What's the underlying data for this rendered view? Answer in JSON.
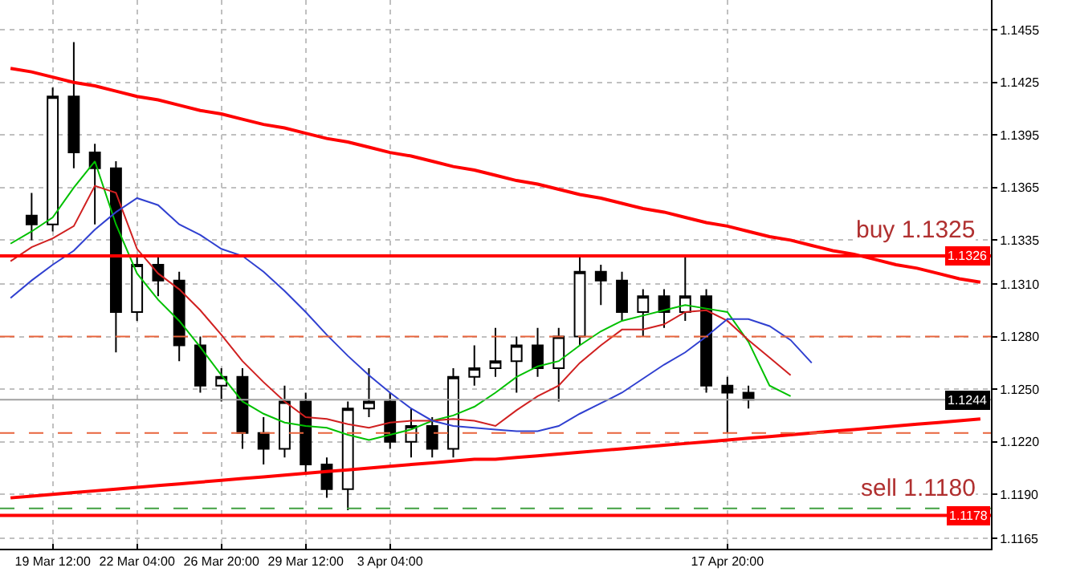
{
  "chart_data": {
    "type": "candlestick",
    "color": "#000000",
    "categories": [
      null,
      null,
      "19 Mar 12:00",
      null,
      null,
      null,
      "22 Mar 04:00",
      null,
      null,
      null,
      "26 Mar 20:00",
      null,
      null,
      null,
      "29 Mar 12:00",
      null,
      null,
      null,
      "3 Apr 04:00",
      null,
      null,
      null,
      null,
      null,
      null,
      null,
      null,
      null,
      null,
      null,
      null,
      null,
      null,
      null,
      "17 Apr 20:00",
      null,
      null,
      null,
      null,
      null,
      null,
      null,
      null,
      null,
      null,
      null,
      null
    ],
    "ohlc": [
      null,
      [
        1.1349,
        1.1362,
        1.1335,
        1.1344
      ],
      [
        1.1344,
        1.1422,
        1.134,
        1.1417
      ],
      [
        1.1417,
        1.1448,
        1.1376,
        1.1385
      ],
      [
        1.1385,
        1.139,
        1.1344,
        1.1376
      ],
      [
        1.1376,
        1.138,
        1.1271,
        1.1294
      ],
      [
        1.1294,
        1.1326,
        1.1289,
        1.1321
      ],
      [
        1.1321,
        1.1326,
        1.1303,
        1.1312
      ],
      [
        1.1312,
        1.1317,
        1.1266,
        1.1275
      ],
      [
        1.1275,
        1.128,
        1.1248,
        1.1252
      ],
      [
        1.1252,
        1.1262,
        1.1243,
        1.1257
      ],
      [
        1.1257,
        1.1262,
        1.1216,
        1.1225
      ],
      [
        1.1225,
        1.1234,
        1.1207,
        1.1216
      ],
      [
        1.1216,
        1.1252,
        1.1211,
        1.1243
      ],
      [
        1.1243,
        1.1248,
        1.1202,
        1.1207
      ],
      [
        1.1207,
        1.1211,
        1.1188,
        1.1193
      ],
      [
        1.1193,
        1.1243,
        1.1181,
        1.1239
      ],
      [
        1.1239,
        1.1262,
        1.1234,
        1.1243
      ],
      [
        1.1243,
        1.1248,
        1.1216,
        1.122
      ],
      [
        1.122,
        1.1239,
        1.1211,
        1.1229
      ],
      [
        1.1229,
        1.1234,
        1.1211,
        1.1216
      ],
      [
        1.1216,
        1.1262,
        1.1211,
        1.1257
      ],
      [
        1.1257,
        1.1275,
        1.1252,
        1.1262
      ],
      [
        1.1262,
        1.1285,
        1.1257,
        1.1266
      ],
      [
        1.1266,
        1.128,
        1.1248,
        1.1275
      ],
      [
        1.1275,
        1.1285,
        1.1257,
        1.1262
      ],
      [
        1.1262,
        1.1285,
        1.1243,
        1.128
      ],
      [
        1.128,
        1.1326,
        1.1275,
        1.1317
      ],
      [
        1.1317,
        1.1321,
        1.1298,
        1.1312
      ],
      [
        1.1312,
        1.1317,
        1.1289,
        1.1294
      ],
      [
        1.1294,
        1.1307,
        1.128,
        1.1303
      ],
      [
        1.1303,
        1.1307,
        1.1285,
        1.1294
      ],
      [
        1.1294,
        1.1326,
        1.1289,
        1.1303
      ],
      [
        1.1303,
        1.1307,
        1.1248,
        1.1252
      ],
      [
        1.1252,
        1.1257,
        1.1225,
        1.1248
      ],
      [
        1.1248,
        1.1252,
        1.1239,
        1.1244
      ],
      null,
      null,
      null,
      null,
      null,
      null,
      null,
      null,
      null,
      null,
      null
    ],
    "series": [
      {
        "type": "line",
        "color": "#00c000",
        "values": [
          1.1333,
          1.134,
          1.1348,
          1.1365,
          1.138,
          1.1344,
          1.1316,
          1.1301,
          1.1289,
          1.1274,
          1.1258,
          1.1243,
          1.1236,
          1.1231,
          1.1229,
          1.1228,
          1.1224,
          1.1221,
          1.1224,
          1.1227,
          1.1232,
          1.1235,
          1.124,
          1.1248,
          1.1257,
          1.1263,
          1.1266,
          1.1275,
          1.1283,
          1.1289,
          1.1292,
          1.1295,
          1.1298,
          1.1296,
          1.1294,
          1.1277,
          1.1252,
          1.1246,
          null,
          null,
          null,
          null,
          null,
          null,
          null,
          null,
          null
        ]
      },
      {
        "type": "line",
        "color": "#d02020",
        "values": [
          1.1323,
          1.1331,
          1.1336,
          1.1343,
          1.1366,
          1.1362,
          1.133,
          1.1316,
          1.1307,
          1.1295,
          1.1281,
          1.1266,
          1.1254,
          1.1243,
          1.1234,
          1.1233,
          1.123,
          1.1228,
          1.1231,
          1.1232,
          1.1232,
          1.1233,
          1.1232,
          1.1229,
          1.1238,
          1.1246,
          1.1252,
          1.1265,
          1.1275,
          1.1284,
          1.1284,
          1.1287,
          1.1294,
          1.1295,
          1.1289,
          1.1278,
          1.1268,
          1.1258,
          null,
          null,
          null,
          null,
          null,
          null,
          null,
          null,
          null
        ]
      },
      {
        "type": "line",
        "color": "#3040d0",
        "values": [
          1.1302,
          1.1312,
          1.1321,
          1.1329,
          1.1341,
          1.1351,
          1.1359,
          1.1355,
          1.1344,
          1.1338,
          1.133,
          1.1326,
          1.1317,
          1.1306,
          1.1294,
          1.1281,
          1.1269,
          1.1258,
          1.1248,
          1.1239,
          1.1232,
          1.1229,
          1.1228,
          1.1227,
          1.1226,
          1.1226,
          1.1229,
          1.1236,
          1.1242,
          1.1248,
          1.1256,
          1.1264,
          1.1271,
          1.128,
          1.129,
          1.129,
          1.1286,
          1.1278,
          1.1265,
          null,
          null,
          null,
          null,
          null,
          null,
          null,
          null
        ]
      },
      {
        "type": "line",
        "color": "#ff0000",
        "values": [
          1.1433,
          1.1431,
          1.1428,
          1.1425,
          1.1423,
          1.142,
          1.1417,
          1.1415,
          1.1412,
          1.1409,
          1.1407,
          1.1404,
          1.1401,
          1.1399,
          1.1396,
          1.1393,
          1.1391,
          1.1388,
          1.1385,
          1.1383,
          1.138,
          1.1377,
          1.1375,
          1.1372,
          1.1369,
          1.1367,
          1.1364,
          1.1361,
          1.1359,
          1.1356,
          1.1353,
          1.1351,
          1.1348,
          1.1345,
          1.1343,
          1.134,
          1.1337,
          1.1335,
          1.1332,
          1.1329,
          1.1327,
          1.1324,
          1.1321,
          1.1319,
          1.1316,
          1.1313,
          1.1311
        ]
      },
      {
        "type": "line",
        "color": "#ff0000",
        "values": [
          1.1188,
          1.1189,
          1.119,
          1.1191,
          1.1192,
          1.1193,
          1.1194,
          1.1195,
          1.1196,
          1.1197,
          1.1198,
          1.1199,
          1.12,
          1.1201,
          1.1202,
          1.1203,
          1.1204,
          1.1205,
          1.1206,
          1.1207,
          1.1208,
          1.1209,
          1.121,
          1.121,
          1.1211,
          1.1212,
          1.1213,
          1.1214,
          1.1215,
          1.1216,
          1.1217,
          1.1218,
          1.1219,
          1.122,
          1.1221,
          1.1222,
          1.1223,
          1.1224,
          1.1225,
          1.1226,
          1.1227,
          1.1228,
          1.1229,
          1.123,
          1.1231,
          1.1232,
          1.1233
        ]
      }
    ],
    "ylim": [
      1.1159,
      1.1472
    ],
    "yticks": [
      1.1455,
      1.1425,
      1.1395,
      1.1365,
      1.1335,
      {
        "value": 1.131,
        "label": "1.1310"
      },
      {
        "value": 1.128,
        "label": "1.1280"
      },
      {
        "value": 1.125,
        "label": "1.1250"
      },
      {
        "value": 1.122,
        "label": "1.1220"
      },
      {
        "value": 1.119,
        "label": "1.1190"
      },
      1.1165
    ],
    "grid": true,
    "ref_lines": [
      {
        "axis": "y",
        "value": 1.1326,
        "label": "1.1326",
        "color": "#ff0000"
      },
      {
        "axis": "y",
        "value": 1.1178,
        "label": "1.1178",
        "color": "#ff0000"
      },
      {
        "axis": "y",
        "value": 1.1244,
        "label": "1.1244",
        "color": "#a0a0a0"
      },
      {
        "axis": "y",
        "value": 1.128,
        "color": "#e8643c",
        "line_style": "dashed"
      },
      {
        "axis": "y",
        "value": 1.1225,
        "color": "#e8643c",
        "line_style": "dashed"
      },
      {
        "axis": "y",
        "value": 1.1182,
        "color": "#40a040",
        "line_style": "dashed"
      }
    ],
    "annotations": [
      "buy 1.1325",
      "sell 1.1180"
    ]
  }
}
